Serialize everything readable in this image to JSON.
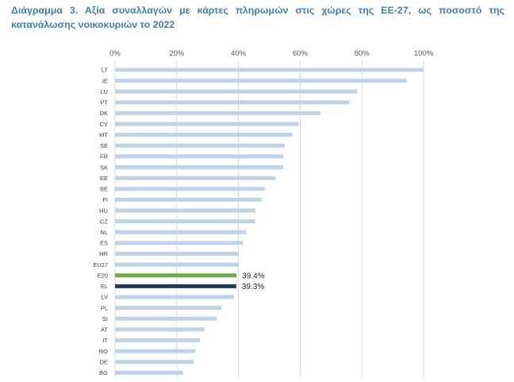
{
  "title": "Διάγραμμα 3. Αξία συναλλαγών με κάρτες πληρωμών στις χώρες της ΕΕ-27, ως ποσοστό της κατανάλωσης νοικοκυριών το 2022",
  "colors": {
    "title": "#3f7fae",
    "bar_default": "#bcd3e8",
    "bar_E20": "#70a84a",
    "bar_EL": "#1f3d5c",
    "gridline": "#d9d9d9"
  },
  "chart_data": {
    "type": "bar",
    "orientation": "horizontal",
    "title": "Αξία συναλλαγών με κάρτες πληρωμών στις χώρες της ΕΕ-27, ως ποσοστό της κατανάλωσης νοικοκυριών το 2022",
    "xlabel": "",
    "ylabel": "",
    "xlim": [
      0,
      100
    ],
    "x_ticks": [
      "0%",
      "20%",
      "40%",
      "60%",
      "80%",
      "100%"
    ],
    "axis_position": "top",
    "grid": true,
    "legend": "none",
    "categories": [
      "LT",
      "IE",
      "LU",
      "PT",
      "DK",
      "CY",
      "MT",
      "SE",
      "FR",
      "SK",
      "EE",
      "BE",
      "FI",
      "HU",
      "CZ",
      "NL",
      "ES",
      "HR",
      "EU27",
      "E20",
      "EL",
      "LV",
      "PL",
      "SI",
      "AT",
      "IT",
      "RO",
      "DE",
      "BG"
    ],
    "values": [
      100,
      94.5,
      78.5,
      76,
      66.5,
      59.5,
      57.5,
      55,
      54.5,
      54.5,
      52,
      48.5,
      47.5,
      45.5,
      45.5,
      42.5,
      41.5,
      40,
      40,
      39.4,
      39.3,
      38.5,
      34.5,
      33,
      29,
      27.5,
      26,
      25.5,
      22
    ],
    "highlight": {
      "E20": "#70a84a",
      "EL": "#1f3d5c"
    },
    "data_labels": {
      "E20": "39.4%",
      "EL": "39.3%"
    }
  }
}
